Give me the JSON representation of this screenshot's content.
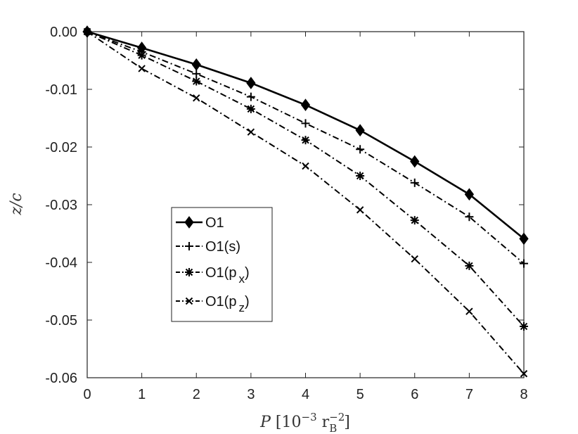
{
  "chart_data": {
    "type": "line",
    "title": "",
    "xlabel": "P [10^-3 r_B^-2]",
    "ylabel": "z/c",
    "xlim": [
      0,
      8
    ],
    "ylim": [
      -0.06,
      0.0
    ],
    "x_ticks": [
      "0",
      "1",
      "2",
      "3",
      "4",
      "5",
      "6",
      "7",
      "8"
    ],
    "y_ticks": [
      "0.00",
      "-0.01",
      "-0.02",
      "-0.03",
      "-0.04",
      "-0.05",
      "-0.06"
    ],
    "x": [
      0,
      1,
      2,
      3,
      4,
      5,
      6,
      7,
      8
    ],
    "grid": false,
    "legend_position": "center-left",
    "series": [
      {
        "name": "O1",
        "marker": "diamond",
        "dash": "solid",
        "values": [
          0.0,
          -0.0028,
          -0.0057,
          -0.0089,
          -0.0127,
          -0.0171,
          -0.0225,
          -0.0282,
          -0.0359
        ]
      },
      {
        "name": "O1(s)",
        "marker": "plus",
        "dash": "dashdot",
        "values": [
          0.0,
          -0.0035,
          -0.0073,
          -0.0113,
          -0.0159,
          -0.0204,
          -0.0262,
          -0.0321,
          -0.0402
        ]
      },
      {
        "name": "O1(p_x)",
        "marker": "asterisk",
        "dash": "dashdot",
        "values": [
          0.0,
          -0.0041,
          -0.0086,
          -0.0134,
          -0.0188,
          -0.025,
          -0.0327,
          -0.0406,
          -0.0511
        ]
      },
      {
        "name": "O1(p_z)",
        "marker": "cross",
        "dash": "dashdot",
        "values": [
          0.0,
          -0.0064,
          -0.0115,
          -0.0174,
          -0.0233,
          -0.0309,
          -0.0394,
          -0.0485,
          -0.0593
        ]
      }
    ],
    "legend_labels": [
      {
        "base": "O1",
        "sub": "",
        "close": ""
      },
      {
        "base": "O1(s)",
        "sub": "",
        "close": ""
      },
      {
        "base": "O1(p",
        "sub": "x",
        "close": ")"
      },
      {
        "base": "O1(p",
        "sub": "z",
        "close": ")"
      }
    ],
    "xlabel_parts": {
      "var": "P",
      "open": "[10",
      "exp": "−3",
      "unit": " r",
      "unit_sub": "B",
      "unit_exp": "−2",
      "close": "]"
    },
    "ylabel_text": "z/c",
    "colors": {
      "line": "#000000",
      "axis": "#222222"
    }
  }
}
